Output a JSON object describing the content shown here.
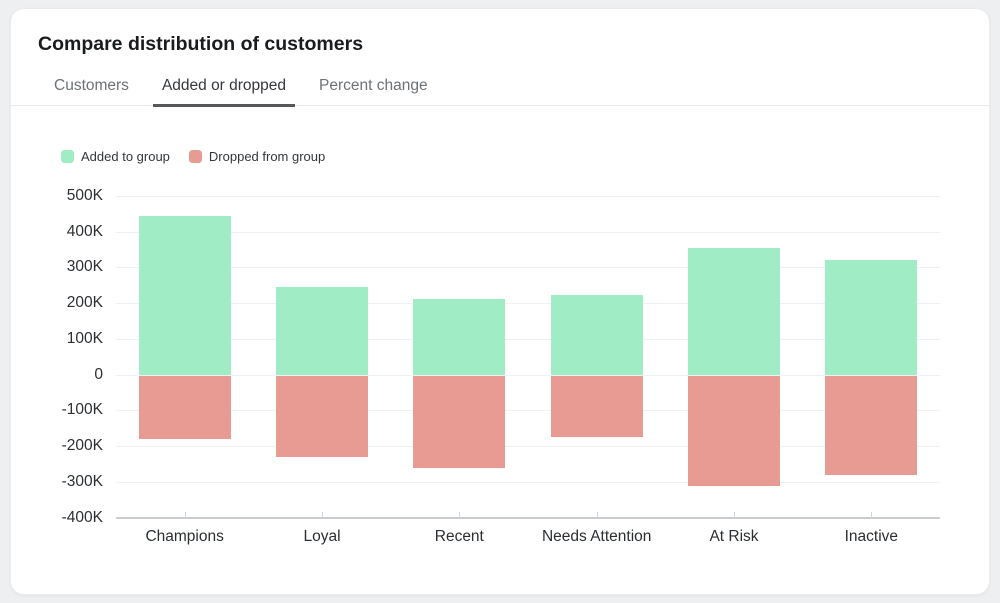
{
  "card": {
    "title": "Compare distribution of customers"
  },
  "tabs": [
    {
      "label": "Customers",
      "active": false
    },
    {
      "label": "Added or dropped",
      "active": true
    },
    {
      "label": "Percent change",
      "active": false
    }
  ],
  "legend": [
    {
      "label": "Added to group",
      "color": "#9fecc5"
    },
    {
      "label": "Dropped from group",
      "color": "#e79b93"
    }
  ],
  "chart_data": {
    "type": "bar",
    "subtype": "diverging-stacked",
    "title": "",
    "xlabel": "",
    "ylabel": "",
    "categories": [
      "Champions",
      "Loyal",
      "Recent",
      "Needs Attention",
      "At Risk",
      "Inactive"
    ],
    "series": [
      {
        "name": "Added to group",
        "color": "#9fecc5",
        "values": [
          445000,
          245000,
          212000,
          224000,
          355000,
          321000
        ]
      },
      {
        "name": "Dropped from group",
        "color": "#e79b93",
        "values": [
          -180000,
          -230000,
          -262000,
          -175000,
          -313000,
          -280000
        ]
      }
    ],
    "ylim": [
      -400000,
      500000
    ],
    "ytick_step": 100000,
    "ytick_labels": [
      "500K",
      "400K",
      "300K",
      "200K",
      "100K",
      "0",
      "-100K",
      "-200K",
      "-300K",
      "-400K"
    ],
    "grid": true,
    "legend_position": "top-left"
  },
  "colors": {
    "page_bg": "#edeff1",
    "card_bg": "#ffffff",
    "grid_line": "#eff1f3",
    "axis_line": "#c9ccce",
    "title_text": "#191c1e",
    "axis_text": "#2b2f32",
    "tab_inactive_text": "#6c7277",
    "tab_active_text": "#33383c",
    "tab_active_underline": "#54585c",
    "added_green": "#9fecc5",
    "dropped_red": "#e79b93"
  }
}
